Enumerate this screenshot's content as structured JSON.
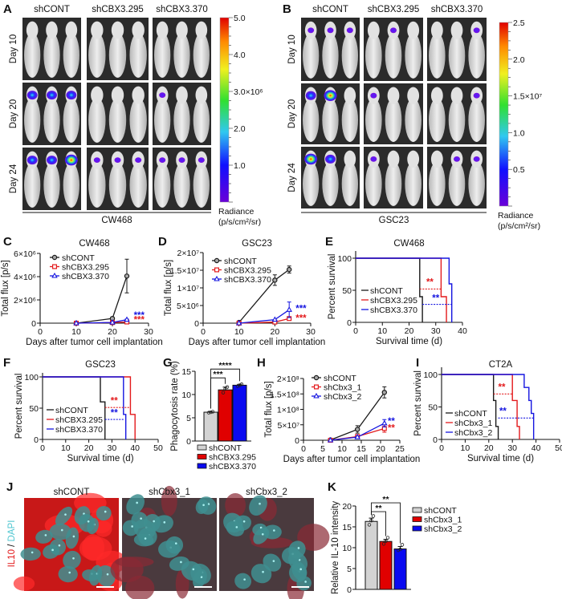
{
  "panel_labels": [
    "A",
    "B",
    "C",
    "D",
    "E",
    "F",
    "G",
    "H",
    "I",
    "J",
    "K"
  ],
  "panel_A": {
    "column_headers": [
      "shCONT",
      "shCBX3.295",
      "shCBX3.370"
    ],
    "row_labels": [
      "Day 10",
      "Day 20",
      "Day 24"
    ],
    "cell_line": "CW468",
    "signal": [
      [
        [
          0,
          0,
          0
        ],
        [
          0,
          0,
          0
        ],
        [
          0,
          0,
          0
        ]
      ],
      [
        [
          2,
          2,
          2
        ],
        [
          0,
          0,
          0
        ],
        [
          1,
          0,
          0
        ]
      ],
      [
        [
          2,
          2,
          3
        ],
        [
          1,
          1,
          1
        ],
        [
          1,
          1,
          1
        ]
      ]
    ],
    "colorbar": {
      "ticklabels": [
        "5.0",
        "4.0",
        "3.0×10⁶",
        "2.0",
        "1.0"
      ],
      "label_line1": "Radiance",
      "label_line2": "(p/s/cm²/sr)"
    }
  },
  "panel_B": {
    "column_headers": [
      "shCONT",
      "shCBX3.295",
      "shCBX3.370"
    ],
    "row_labels": [
      "Day 10",
      "Day 20",
      "Day 24"
    ],
    "cell_line": "GSC23",
    "signal": [
      [
        [
          1,
          1,
          1
        ],
        [
          0,
          1,
          0
        ],
        [
          0,
          0,
          1
        ]
      ],
      [
        [
          2,
          3,
          0
        ],
        [
          1,
          0,
          0
        ],
        [
          0,
          0,
          1
        ]
      ],
      [
        [
          3,
          2,
          0
        ],
        [
          1,
          0,
          0
        ],
        [
          0,
          1,
          1
        ]
      ]
    ],
    "colorbar": {
      "ticklabels": [
        "2.5",
        "2.0",
        "1.5×10⁷",
        "1.0",
        "0.5"
      ],
      "label_line1": "Radiance",
      "label_line2": "(p/s/cm²/sr)"
    }
  },
  "panel_J": {
    "column_headers": [
      "shCONT",
      "shCbx3_1",
      "shCbx3_2"
    ],
    "stain_label_red": "IL10",
    "stain_label_sep": " / ",
    "stain_label_cyan": "DAPI",
    "il10_level": [
      "high",
      "low",
      "low"
    ]
  },
  "colors": {
    "black": "#1a1a1a",
    "red": "#e31a1c",
    "blue": "#1515e0",
    "gray_bar": "#d3d3d3",
    "red_bar": "#e00000",
    "blue_bar": "#0a0af0"
  },
  "chart_data": [
    {
      "panel": "C",
      "type": "line",
      "title": "CW468",
      "xlabel": "Days after tumor cell implantation",
      "ylabel": "Total flux [p/s]",
      "xlim": [
        0,
        30
      ],
      "ylim": [
        0,
        6000000
      ],
      "xticks": [
        0,
        10,
        20,
        30
      ],
      "xticklabels": [
        "0",
        "10",
        "20",
        "30"
      ],
      "yticks": [
        0,
        2000000,
        4000000,
        6000000
      ],
      "yticklabels": [
        "0",
        "2×10⁶",
        "4×10⁶",
        "6×10⁶"
      ],
      "legend": "top-left",
      "series": [
        {
          "name": "shCONT",
          "color": "#1a1a1a",
          "marker": "circle",
          "x": [
            10,
            20,
            24
          ],
          "y": [
            0,
            400000,
            4050000
          ],
          "err": [
            0,
            50000,
            1450000
          ]
        },
        {
          "name": "shCBX3.295",
          "color": "#e31a1c",
          "marker": "square",
          "x": [
            10,
            20,
            24
          ],
          "y": [
            0,
            50000,
            100000
          ],
          "err": [
            0,
            0,
            0
          ]
        },
        {
          "name": "shCBX3.370",
          "color": "#1515e0",
          "marker": "triangle",
          "x": [
            10,
            20,
            24
          ],
          "y": [
            0,
            60000,
            300000
          ],
          "err": [
            0,
            0,
            50000
          ]
        }
      ],
      "annotations": [
        {
          "text": "***",
          "color": "#1515e0",
          "x": 27.4,
          "y": 420000
        },
        {
          "text": "***",
          "color": "#e31a1c",
          "x": 27.4,
          "y": 20000
        }
      ]
    },
    {
      "panel": "D",
      "type": "line",
      "title": "GSC23",
      "xlabel": "Days after tumor cell implantation",
      "ylabel": "Total flux [p/s]",
      "xlim": [
        0,
        30
      ],
      "ylim": [
        0,
        20000000
      ],
      "xticks": [
        0,
        10,
        20,
        30
      ],
      "xticklabels": [
        "0",
        "10",
        "20",
        "30"
      ],
      "yticks": [
        0,
        5000000,
        10000000,
        15000000,
        20000000
      ],
      "yticklabels": [
        "0",
        "5×10⁶",
        "1×10⁷",
        "1.5×10⁷",
        "2×10⁷"
      ],
      "legend": "top-left",
      "series": [
        {
          "name": "shCONT",
          "color": "#1a1a1a",
          "marker": "circle",
          "x": [
            10,
            20,
            24
          ],
          "y": [
            200000,
            12200000,
            15200000
          ],
          "err": [
            0,
            1500000,
            1000000
          ]
        },
        {
          "name": "shCBX3.295",
          "color": "#e31a1c",
          "marker": "square",
          "x": [
            10,
            20,
            24
          ],
          "y": [
            0,
            300000,
            1300000
          ],
          "err": [
            0,
            0,
            300000
          ]
        },
        {
          "name": "shCBX3.370",
          "color": "#1515e0",
          "marker": "triangle",
          "x": [
            10,
            20,
            24
          ],
          "y": [
            0,
            1000000,
            3800000
          ],
          "err": [
            0,
            0,
            2200000
          ]
        }
      ],
      "annotations": [
        {
          "text": "***",
          "color": "#1515e0",
          "x": 27.3,
          "y": 3300000
        },
        {
          "text": "***",
          "color": "#e31a1c",
          "x": 27.3,
          "y": 600000
        }
      ]
    },
    {
      "panel": "E",
      "type": "km",
      "title": "CW468",
      "xlabel": "Survival time (d)",
      "ylabel": "Percent survival",
      "xlim": [
        0,
        40
      ],
      "ylim": [
        0,
        100
      ],
      "xticks": [
        0,
        10,
        20,
        30,
        40
      ],
      "xticklabels": [
        "0",
        "10",
        "20",
        "30",
        "40"
      ],
      "yticks": [
        0,
        50,
        100
      ],
      "yticklabels": [
        "0",
        "50",
        "100"
      ],
      "legend": "bottom-left",
      "series": [
        {
          "name": "shCONT",
          "color": "#1a1a1a",
          "points": [
            [
              0,
              100
            ],
            [
              24,
              40
            ],
            [
              25,
              0
            ]
          ]
        },
        {
          "name": "shCBX3.295",
          "color": "#e31a1c",
          "points": [
            [
              0,
              100
            ],
            [
              32,
              40
            ],
            [
              34,
              0
            ]
          ]
        },
        {
          "name": "shCBX3.370",
          "color": "#1515e0",
          "points": [
            [
              0,
              100
            ],
            [
              35,
              60
            ],
            [
              36,
              0
            ]
          ]
        }
      ],
      "median_lines": [
        {
          "color": "#e31a1c",
          "y": 52,
          "x": [
            24,
            32
          ]
        },
        {
          "color": "#1515e0",
          "y": 28,
          "x": [
            25,
            36
          ]
        }
      ],
      "annotations": [
        {
          "text": "**",
          "color": "#e31a1c",
          "x": 27.8,
          "y": 58
        },
        {
          "text": "**",
          "color": "#1515e0",
          "x": 30,
          "y": 33
        }
      ]
    },
    {
      "panel": "F",
      "type": "km",
      "title": "GSC23",
      "xlabel": "Survival time (d)",
      "ylabel": "Percent survival",
      "xlim": [
        0,
        50
      ],
      "ylim": [
        0,
        100
      ],
      "xticks": [
        0,
        10,
        20,
        30,
        40,
        50
      ],
      "xticklabels": [
        "0",
        "10",
        "20",
        "30",
        "40",
        "50"
      ],
      "yticks": [
        0,
        50,
        100
      ],
      "yticklabels": [
        "0",
        "50",
        "100"
      ],
      "legend": "bottom-left",
      "series": [
        {
          "name": "shCONT",
          "color": "#1a1a1a",
          "points": [
            [
              0,
              100
            ],
            [
              25,
              60
            ],
            [
              27,
              0
            ]
          ]
        },
        {
          "name": "shCBX3.295",
          "color": "#e31a1c",
          "points": [
            [
              0,
              100
            ],
            [
              38,
              40
            ],
            [
              40,
              0
            ]
          ]
        },
        {
          "name": "shCBX3.370",
          "color": "#1515e0",
          "points": [
            [
              0,
              100
            ],
            [
              35,
              40
            ],
            [
              36,
              0
            ]
          ]
        }
      ],
      "median_lines": [
        {
          "color": "#e31a1c",
          "y": 51,
          "x": [
            27,
            38
          ]
        },
        {
          "color": "#1515e0",
          "y": 32,
          "x": [
            27,
            35
          ]
        }
      ],
      "annotations": [
        {
          "text": "**",
          "color": "#e31a1c",
          "x": 31,
          "y": 57
        },
        {
          "text": "**",
          "color": "#1515e0",
          "x": 31,
          "y": 38
        }
      ]
    },
    {
      "panel": "G",
      "type": "bar",
      "ylabel": "Phagocytosis rate (%)",
      "ylim": [
        0,
        15
      ],
      "yticks": [
        0,
        5,
        10,
        15
      ],
      "yticklabels": [
        "0",
        "5",
        "10",
        "15"
      ],
      "legend": "bottom",
      "categories": [
        "shCONT",
        "shCBX3.295",
        "shCBX3.370"
      ],
      "values": [
        6.2,
        11.0,
        12.0
      ],
      "err": [
        0.1,
        0.6,
        0.2
      ],
      "colors": [
        "#d3d3d3",
        "#e00000",
        "#0a0af0"
      ],
      "points": [
        [
          6.1,
          6.2,
          6.3
        ],
        [
          10.4,
          11.2,
          11.6
        ],
        [
          11.8,
          12.0,
          12.2
        ]
      ],
      "comparisons": [
        {
          "from": 0,
          "to": 1,
          "text": "***"
        },
        {
          "from": 0,
          "to": 2,
          "text": "****"
        }
      ]
    },
    {
      "panel": "H",
      "type": "line",
      "xlabel": "Days after tumor cell implantation",
      "ylabel": "Total flux [p/s]",
      "xlim": [
        0,
        25
      ],
      "ylim": [
        0,
        200000000
      ],
      "xticks": [
        0,
        5,
        10,
        15,
        20,
        25
      ],
      "xticklabels": [
        "0",
        "5",
        "10",
        "15",
        "20",
        "25"
      ],
      "yticks": [
        0,
        50000000,
        100000000,
        150000000,
        200000000
      ],
      "yticklabels": [
        "0",
        "5×10⁷",
        "1×10⁸",
        "1.5×10⁸",
        "2×10⁸"
      ],
      "legend": "top-left",
      "series": [
        {
          "name": "shCONT",
          "color": "#1a1a1a",
          "marker": "circle",
          "x": [
            7,
            14,
            21
          ],
          "y": [
            1000000,
            35000000,
            155000000
          ],
          "err": [
            0,
            12000000,
            18000000
          ]
        },
        {
          "name": "shCbx3_1",
          "color": "#e31a1c",
          "marker": "square",
          "x": [
            7,
            14,
            21
          ],
          "y": [
            0,
            12000000,
            38000000
          ],
          "err": [
            0,
            4000000,
            12000000
          ]
        },
        {
          "name": "shCbx3_2",
          "color": "#1515e0",
          "marker": "triangle",
          "x": [
            7,
            14,
            21
          ],
          "y": [
            0,
            10000000,
            55000000
          ],
          "err": [
            0,
            3000000,
            12000000
          ]
        }
      ],
      "annotations": [
        {
          "text": "**",
          "color": "#1515e0",
          "x": 22.8,
          "y": 52000000
        },
        {
          "text": "**",
          "color": "#e31a1c",
          "x": 22.8,
          "y": 30000000
        }
      ]
    },
    {
      "panel": "I",
      "type": "km",
      "title": "CT2A",
      "xlabel": "Survival time (d)",
      "ylabel": "Percent survival",
      "xlim": [
        0,
        50
      ],
      "ylim": [
        0,
        100
      ],
      "xticks": [
        0,
        10,
        20,
        30,
        40,
        50
      ],
      "xticklabels": [
        "0",
        "10",
        "20",
        "30",
        "40",
        "50"
      ],
      "yticks": [
        0,
        50,
        100
      ],
      "yticklabels": [
        "0",
        "50",
        "100"
      ],
      "legend": "bottom-left",
      "series": [
        {
          "name": "shCONT",
          "color": "#1a1a1a",
          "points": [
            [
              0,
              100
            ],
            [
              22,
              60
            ],
            [
              23,
              20
            ],
            [
              24,
              0
            ]
          ]
        },
        {
          "name": "shCbx3_1",
          "color": "#e31a1c",
          "points": [
            [
              0,
              100
            ],
            [
              30,
              60
            ],
            [
              32,
              20
            ],
            [
              33,
              0
            ]
          ]
        },
        {
          "name": "shCbx3_2",
          "color": "#1515e0",
          "points": [
            [
              0,
              100
            ],
            [
              35,
              80
            ],
            [
              37,
              60
            ],
            [
              38,
              40
            ],
            [
              39,
              0
            ]
          ]
        }
      ],
      "median_lines": [
        {
          "color": "#e31a1c",
          "y": 70,
          "x": [
            22,
            30
          ]
        },
        {
          "color": "#1515e0",
          "y": 33,
          "x": [
            24,
            39
          ]
        }
      ],
      "annotations": [
        {
          "text": "**",
          "color": "#e31a1c",
          "x": 25.5,
          "y": 76
        },
        {
          "text": "**",
          "color": "#1515e0",
          "x": 26,
          "y": 39
        }
      ]
    },
    {
      "panel": "K",
      "type": "bar",
      "ylabel": "Relative IL-10 intensity",
      "ylim": [
        0,
        20
      ],
      "yticks": [
        0,
        5,
        10,
        15,
        20
      ],
      "yticklabels": [
        "0",
        "5",
        "10",
        "15",
        "20"
      ],
      "legend": "right",
      "categories": [
        "shCONT",
        "shCbx3_1",
        "shCbx3_2"
      ],
      "values": [
        16.3,
        11.5,
        9.7
      ],
      "err": [
        0.8,
        0.5,
        0.6
      ],
      "colors": [
        "#d3d3d3",
        "#e00000",
        "#0a0af0"
      ],
      "points": [
        [
          15.5,
          16.5,
          17.6
        ],
        [
          10.9,
          11.6,
          12.4
        ],
        [
          9.4,
          9.6,
          10.7
        ]
      ],
      "comparisons": [
        {
          "from": 0,
          "to": 1,
          "text": "**"
        },
        {
          "from": 0,
          "to": 2,
          "text": "**"
        }
      ]
    }
  ]
}
